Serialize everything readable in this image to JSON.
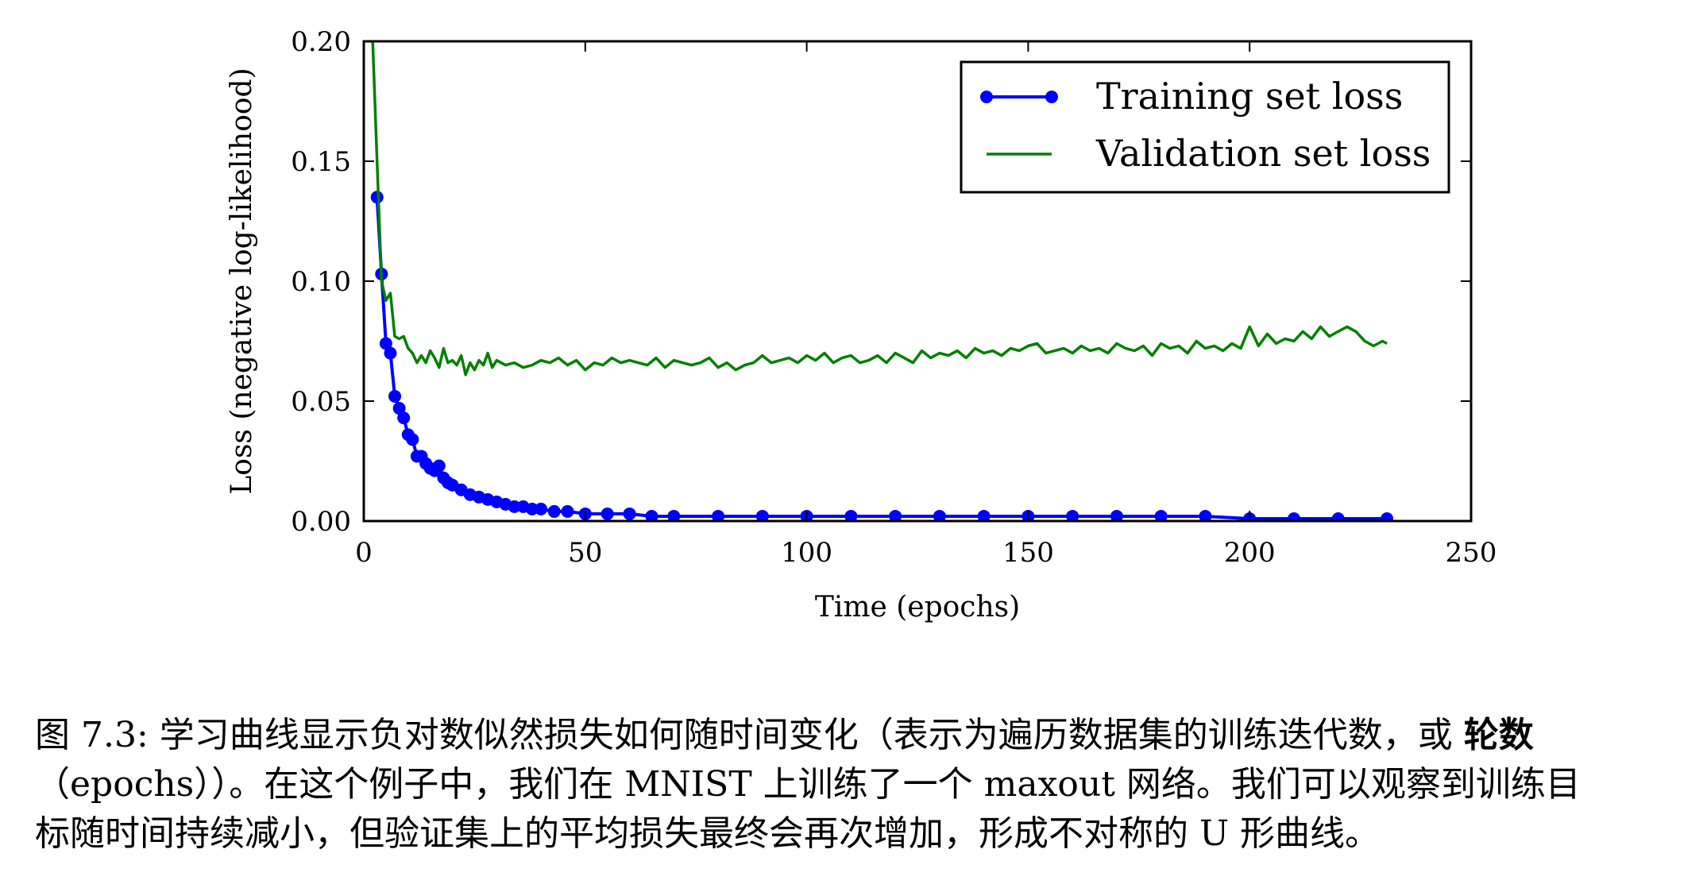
{
  "chart_data": {
    "type": "line",
    "xlabel": "Time (epochs)",
    "ylabel": "Loss (negative log-likelihood)",
    "xlim": [
      0,
      250
    ],
    "ylim": [
      0,
      0.2
    ],
    "x_ticks": [
      "0",
      "50",
      "100",
      "150",
      "200",
      "250"
    ],
    "y_ticks": [
      "0.00",
      "0.05",
      "0.10",
      "0.15",
      "0.20"
    ],
    "grid": false,
    "legend_position": "top-right",
    "series": [
      {
        "name": "Training set loss",
        "color": "#0000ff",
        "marker": "circle",
        "x": [
          3,
          4,
          5,
          6,
          7,
          8,
          9,
          10,
          11,
          12,
          13,
          14,
          15,
          16,
          17,
          18,
          19,
          20,
          22,
          24,
          26,
          28,
          30,
          32,
          34,
          36,
          38,
          40,
          43,
          46,
          50,
          55,
          60,
          65,
          70,
          80,
          90,
          100,
          110,
          120,
          130,
          140,
          150,
          160,
          170,
          180,
          190,
          200,
          210,
          220,
          231
        ],
        "y": [
          0.135,
          0.103,
          0.074,
          0.07,
          0.052,
          0.047,
          0.043,
          0.036,
          0.034,
          0.027,
          0.027,
          0.024,
          0.022,
          0.021,
          0.023,
          0.018,
          0.016,
          0.015,
          0.013,
          0.011,
          0.01,
          0.009,
          0.008,
          0.007,
          0.006,
          0.006,
          0.005,
          0.005,
          0.004,
          0.004,
          0.003,
          0.003,
          0.003,
          0.002,
          0.002,
          0.002,
          0.002,
          0.002,
          0.002,
          0.002,
          0.002,
          0.002,
          0.002,
          0.002,
          0.002,
          0.002,
          0.002,
          0.001,
          0.001,
          0.001,
          0.001
        ]
      },
      {
        "name": "Validation set loss",
        "color": "#008000",
        "x": [
          2,
          3,
          4,
          5,
          6,
          7,
          8,
          9,
          10,
          11,
          12,
          13,
          14,
          15,
          16,
          17,
          18,
          19,
          20,
          21,
          22,
          23,
          24,
          25,
          26,
          27,
          28,
          29,
          30,
          32,
          34,
          36,
          38,
          40,
          42,
          44,
          46,
          48,
          50,
          52,
          54,
          56,
          58,
          60,
          62,
          64,
          66,
          68,
          70,
          72,
          74,
          76,
          78,
          80,
          82,
          84,
          86,
          88,
          90,
          92,
          94,
          96,
          98,
          100,
          102,
          104,
          106,
          108,
          110,
          112,
          114,
          116,
          118,
          120,
          122,
          124,
          126,
          128,
          130,
          132,
          134,
          136,
          138,
          140,
          142,
          144,
          146,
          148,
          150,
          152,
          154,
          156,
          158,
          160,
          162,
          164,
          166,
          168,
          170,
          172,
          174,
          176,
          178,
          180,
          182,
          184,
          186,
          188,
          190,
          192,
          194,
          196,
          198,
          200,
          202,
          204,
          206,
          208,
          210,
          212,
          214,
          216,
          218,
          220,
          222,
          224,
          226,
          228,
          230,
          231
        ],
        "y": [
          0.2,
          0.15,
          0.1,
          0.092,
          0.095,
          0.077,
          0.076,
          0.077,
          0.072,
          0.07,
          0.066,
          0.069,
          0.066,
          0.071,
          0.068,
          0.064,
          0.072,
          0.066,
          0.067,
          0.065,
          0.069,
          0.061,
          0.066,
          0.063,
          0.067,
          0.065,
          0.07,
          0.064,
          0.067,
          0.065,
          0.066,
          0.064,
          0.065,
          0.067,
          0.066,
          0.068,
          0.065,
          0.067,
          0.063,
          0.066,
          0.065,
          0.068,
          0.066,
          0.067,
          0.066,
          0.065,
          0.068,
          0.064,
          0.067,
          0.066,
          0.065,
          0.066,
          0.068,
          0.064,
          0.066,
          0.063,
          0.065,
          0.066,
          0.069,
          0.066,
          0.067,
          0.068,
          0.066,
          0.069,
          0.067,
          0.07,
          0.066,
          0.068,
          0.069,
          0.066,
          0.067,
          0.069,
          0.066,
          0.07,
          0.068,
          0.066,
          0.071,
          0.068,
          0.07,
          0.069,
          0.071,
          0.068,
          0.072,
          0.07,
          0.071,
          0.069,
          0.072,
          0.071,
          0.073,
          0.074,
          0.07,
          0.071,
          0.072,
          0.07,
          0.073,
          0.071,
          0.072,
          0.07,
          0.074,
          0.072,
          0.071,
          0.073,
          0.069,
          0.074,
          0.072,
          0.073,
          0.07,
          0.075,
          0.072,
          0.073,
          0.071,
          0.074,
          0.072,
          0.081,
          0.073,
          0.078,
          0.074,
          0.076,
          0.075,
          0.079,
          0.076,
          0.081,
          0.077,
          0.079,
          0.081,
          0.079,
          0.075,
          0.073,
          0.075,
          0.074
        ]
      }
    ]
  },
  "caption": {
    "line1_prefix": "图 7.3: 学习曲线显示负对数似然损失如何随时间变化（表示为遍历数据集的训练迭代数，或 ",
    "line1_bold": "轮数",
    "line2": "（epochs））。在这个例子中，我们在 MNIST 上训练了一个 maxout 网络。我们可以观察到训练目",
    "line3": "标随时间持续减小，但验证集上的平均损失最终会再次增加，形成不对称的 U 形曲线。"
  }
}
